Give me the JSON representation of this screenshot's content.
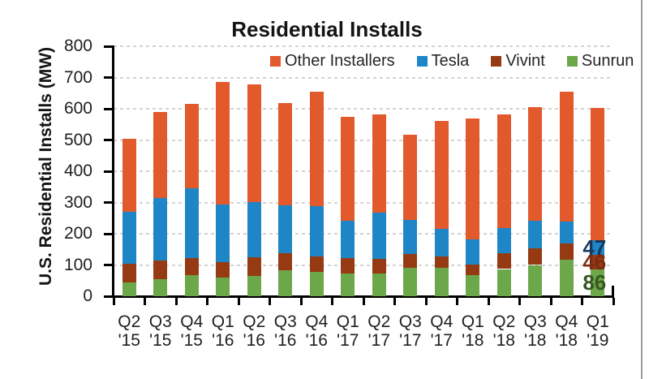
{
  "title": "Residential Installs",
  "y_axis": {
    "label": "U.S. Residential Installs (MW)"
  },
  "legend": [
    {
      "label": "Other Installers",
      "color": "#E2592B"
    },
    {
      "label": "Tesla",
      "color": "#1E86C6"
    },
    {
      "label": "Vivint",
      "color": "#953A12"
    },
    {
      "label": "Sunrun",
      "color": "#6CA84A"
    }
  ],
  "chart_data": {
    "type": "bar",
    "stacked": true,
    "title": "Residential Installs",
    "xlabel": "",
    "ylabel": "U.S. Residential Installs (MW)",
    "ylim": [
      0,
      800
    ],
    "ytick_step": 100,
    "grid": "horizontal-dashed",
    "legend_position": "top",
    "categories": [
      "Q2 '15",
      "Q3 '15",
      "Q4 '15",
      "Q1 '16",
      "Q2 '16",
      "Q3 '16",
      "Q4 '16",
      "Q1 '17",
      "Q2 '17",
      "Q3 '17",
      "Q4 '17",
      "Q1 '18",
      "Q2 '18",
      "Q3 '18",
      "Q4 '18",
      "Q1 '19"
    ],
    "series": [
      {
        "name": "Sunrun",
        "color": "#6CA84A",
        "values": [
          45,
          55,
          67,
          61,
          65,
          82,
          78,
          72,
          72,
          91,
          91,
          68,
          87,
          100,
          118,
          86
        ]
      },
      {
        "name": "Vivint",
        "color": "#953A12",
        "values": [
          60,
          60,
          55,
          49,
          59,
          56,
          50,
          49,
          47,
          44,
          35,
          34,
          51,
          52,
          50,
          46
        ]
      },
      {
        "name": "Tesla",
        "color": "#1E86C6",
        "values": [
          165,
          200,
          223,
          183,
          178,
          154,
          161,
          121,
          149,
          109,
          90,
          79,
          80,
          90,
          71,
          47
        ]
      },
      {
        "name": "Other Installers",
        "color": "#E2592B",
        "values": [
          233,
          275,
          270,
          394,
          376,
          326,
          365,
          332,
          313,
          274,
          345,
          388,
          365,
          362,
          415,
          424
        ]
      }
    ],
    "annotations": [
      {
        "series": "Tesla",
        "category": "Q1 '19",
        "value": 47,
        "color": "#17375E"
      },
      {
        "series": "Vivint",
        "category": "Q1 '19",
        "value": 46,
        "color": "#7B2D12"
      },
      {
        "series": "Sunrun",
        "category": "Q1 '19",
        "value": 86,
        "color": "#375623"
      }
    ]
  }
}
